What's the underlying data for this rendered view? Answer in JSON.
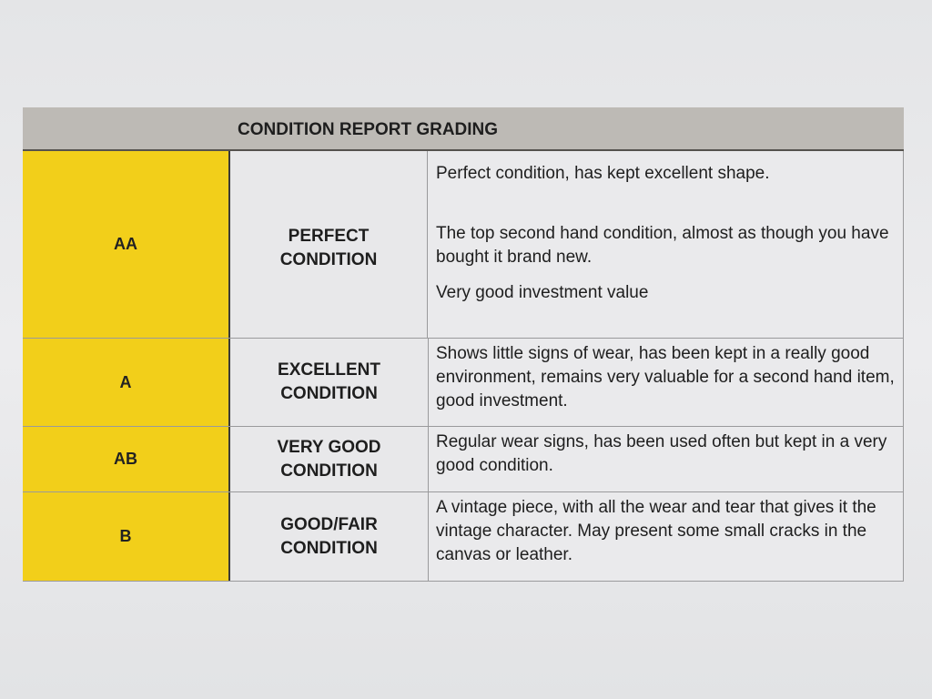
{
  "table": {
    "title": "CONDITION REPORT GRADING",
    "rows": [
      {
        "grade": "AA",
        "condition": "PERFECT CONDITION",
        "description": [
          "Perfect condition, has kept excellent shape.",
          "The top second hand condition, almost as though you have bought it brand new.",
          "Very good investment value"
        ]
      },
      {
        "grade": "A",
        "condition": "EXCELLENT CONDITION",
        "description": [
          "Shows little signs of wear, has been kept in a really good environment, remains very valuable for a second hand item, good investment."
        ]
      },
      {
        "grade": "AB",
        "condition": "VERY GOOD CONDITION",
        "description": [
          "Regular wear signs, has been used often but kept in a very good condition."
        ]
      },
      {
        "grade": "B",
        "condition": "GOOD/FAIR CONDITION",
        "description": [
          "A vintage piece, with all the wear and tear that gives it the vintage character. May present some small cracks in the canvas or leather."
        ]
      }
    ]
  },
  "colors": {
    "grade_column": "#f2cf1a",
    "header": "#bdbab5"
  }
}
